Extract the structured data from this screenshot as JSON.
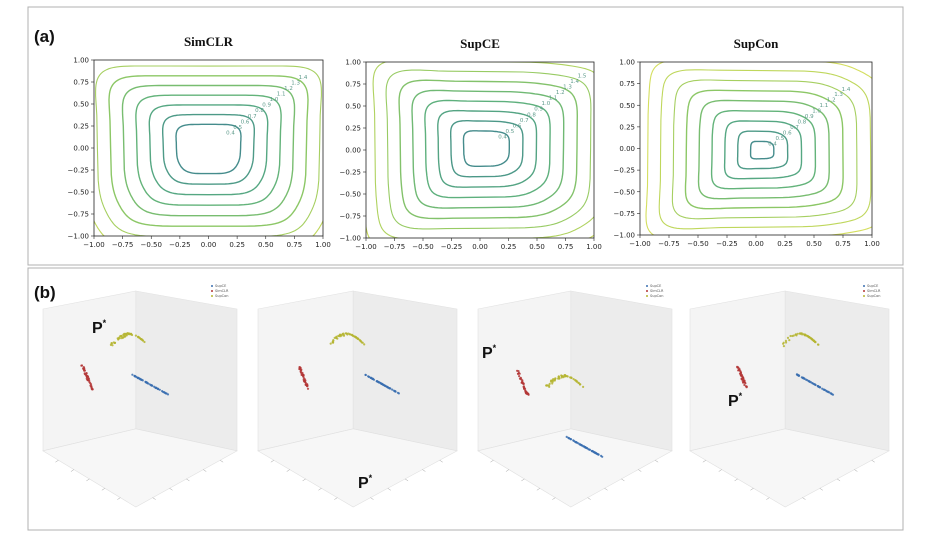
{
  "labels": {
    "panel_a": "(a)",
    "panel_b": "(b)"
  },
  "chart_data": [
    {
      "type": "contour",
      "title": "SimCLR",
      "xlim": [
        -1.0,
        1.0
      ],
      "ylim": [
        -1.0,
        1.0
      ],
      "x_ticks": [
        "−1.00",
        "−0.75",
        "−0.50",
        "−0.25",
        "0.00",
        "0.25",
        "0.50",
        "0.75",
        "1.00"
      ],
      "y_ticks": [
        "1.00",
        "0.75",
        "0.50",
        "0.25",
        "0.00",
        "−0.25",
        "−0.50",
        "−0.75",
        "−1.00"
      ],
      "contour_levels": [
        0.4,
        0.5,
        0.6,
        0.7,
        0.8,
        0.9,
        1.0,
        1.1,
        1.2,
        1.3,
        1.4
      ],
      "center": [
        0.0,
        0.0
      ],
      "inner_radius": 0.28,
      "colormap": "viridis"
    },
    {
      "type": "contour",
      "title": "SupCE",
      "xlim": [
        -1.0,
        1.0
      ],
      "ylim": [
        -1.0,
        1.0
      ],
      "x_ticks": [
        "−1.00",
        "−0.75",
        "−0.50",
        "−0.25",
        "0.00",
        "0.25",
        "0.50",
        "0.75",
        "1.00"
      ],
      "y_ticks": [
        "1.00",
        "0.75",
        "0.50",
        "0.25",
        "0.00",
        "−0.25",
        "−0.50",
        "−0.75",
        "−1.00"
      ],
      "contour_levels": [
        0.4,
        0.5,
        0.6,
        0.7,
        0.8,
        0.9,
        1.0,
        1.1,
        1.2,
        1.3,
        1.4,
        1.5
      ],
      "center": [
        0.05,
        0.02
      ],
      "inner_radius": 0.2,
      "colormap": "viridis"
    },
    {
      "type": "contour",
      "title": "SupCon",
      "xlim": [
        -1.0,
        1.0
      ],
      "ylim": [
        -1.0,
        1.0
      ],
      "x_ticks": [
        "−1.00",
        "−0.75",
        "−0.50",
        "−0.25",
        "0.00",
        "0.25",
        "0.50",
        "0.75",
        "1.00"
      ],
      "y_ticks": [
        "1.00",
        "0.75",
        "0.50",
        "0.25",
        "0.00",
        "−0.25",
        "−0.50",
        "−0.75",
        "−1.00"
      ],
      "contour_levels": [
        0.4,
        0.5,
        0.6,
        0.7,
        0.8,
        0.9,
        1.0,
        1.1,
        1.2,
        1.3,
        1.4
      ],
      "center": [
        0.05,
        -0.02
      ],
      "inner_radius": 0.1,
      "colormap": "viridis"
    },
    {
      "type": "scatter3d",
      "title": "",
      "point_label": "P",
      "point_label_sup": "*",
      "series_colors": [
        "#3a6fb0",
        "#b33636",
        "#b5b531"
      ],
      "legend": [
        "SupCE",
        "SimCLR",
        "SupCon"
      ]
    },
    {
      "type": "scatter3d",
      "title": "",
      "point_label": "P",
      "point_label_sup": "*",
      "series_colors": [
        "#3a6fb0",
        "#b33636",
        "#b5b531"
      ],
      "legend": []
    },
    {
      "type": "scatter3d",
      "title": "",
      "point_label": "P",
      "point_label_sup": "*",
      "series_colors": [
        "#3a6fb0",
        "#b33636",
        "#b5b531"
      ],
      "legend": [
        "SupCE",
        "SimCLR",
        "SupCon"
      ]
    },
    {
      "type": "scatter3d",
      "title": "",
      "point_label": "P",
      "point_label_sup": "*",
      "series_colors": [
        "#3a6fb0",
        "#b33636",
        "#b5b531"
      ],
      "legend": [
        "SupCE",
        "SimCLR",
        "SupCon"
      ]
    }
  ]
}
